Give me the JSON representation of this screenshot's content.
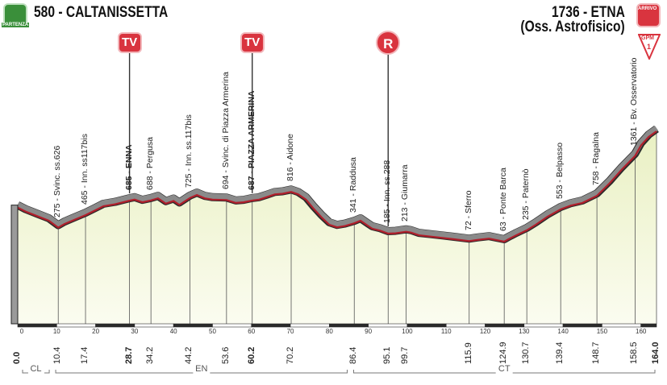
{
  "start": {
    "label": "580 - CALTANISSETTA",
    "badge_text": "PARTENZA"
  },
  "finish": {
    "line1": "1736 - ETNA",
    "line2": "(Oss. Astrofisico)",
    "badge_text": "ARRIVO",
    "gpm_text": "GPM",
    "gpm_cat": "1"
  },
  "markers": [
    {
      "type": "TV",
      "km": 28.7
    },
    {
      "type": "TV",
      "km": 60.2
    },
    {
      "type": "R",
      "km": 95.1
    }
  ],
  "waypoints": [
    {
      "text": "275 - Svinc. ss.626",
      "km": 10.4,
      "bold": false
    },
    {
      "text": "465 - Inn. ss117bis",
      "km": 17.4,
      "bold": false
    },
    {
      "text": "685 - ENNA",
      "km": 28.7,
      "bold": true
    },
    {
      "text": "688 - Pergusa",
      "km": 34.2,
      "bold": false
    },
    {
      "text": "725 - Inn. ss.117bis",
      "km": 44.2,
      "bold": false
    },
    {
      "text": "694 - Svinc. di Piazza Armerina",
      "km": 53.6,
      "bold": false
    },
    {
      "text": "687 - PIAZZA ARMERINA",
      "km": 60.2,
      "bold": true
    },
    {
      "text": "816 - Aidone",
      "km": 70.2,
      "bold": false
    },
    {
      "text": "341 - Raddusa",
      "km": 86.4,
      "bold": false
    },
    {
      "text": "185 - Inn. ss.288",
      "km": 95.1,
      "bold": false
    },
    {
      "text": "213 - Giumarra",
      "km": 99.7,
      "bold": false
    },
    {
      "text": "72 - Sferro",
      "km": 115.9,
      "bold": false
    },
    {
      "text": "63 - Ponte Barca",
      "km": 124.9,
      "bold": false
    },
    {
      "text": "235 - Paternò",
      "km": 130.7,
      "bold": false
    },
    {
      "text": "553 - Belpasso",
      "km": 139.4,
      "bold": false
    },
    {
      "text": "758 - Ragalna",
      "km": 148.7,
      "bold": false
    },
    {
      "text": "1361 - Bv. Osservatorio",
      "km": 158.5,
      "bold": false
    }
  ],
  "km_labels": [
    {
      "text": "0.0",
      "km": 0,
      "bold": true
    },
    {
      "text": "10.4",
      "km": 10.4,
      "bold": false
    },
    {
      "text": "17.4",
      "km": 17.4,
      "bold": false
    },
    {
      "text": "28.7",
      "km": 28.7,
      "bold": true
    },
    {
      "text": "34.2",
      "km": 34.2,
      "bold": false
    },
    {
      "text": "44.2",
      "km": 44.2,
      "bold": false
    },
    {
      "text": "53.6",
      "km": 53.6,
      "bold": false
    },
    {
      "text": "60.2",
      "km": 60.2,
      "bold": true
    },
    {
      "text": "70.2",
      "km": 70.2,
      "bold": false
    },
    {
      "text": "86.4",
      "km": 86.4,
      "bold": false
    },
    {
      "text": "95.1",
      "km": 95.1,
      "bold": false
    },
    {
      "text": "99.7",
      "km": 99.7,
      "bold": false
    },
    {
      "text": "115.9",
      "km": 115.9,
      "bold": false
    },
    {
      "text": "124.9",
      "km": 124.9,
      "bold": false
    },
    {
      "text": "130.7",
      "km": 130.7,
      "bold": false
    },
    {
      "text": "139.4",
      "km": 139.4,
      "bold": false
    },
    {
      "text": "148.7",
      "km": 148.7,
      "bold": false
    },
    {
      "text": "158.5",
      "km": 158.5,
      "bold": false
    },
    {
      "text": "164.0",
      "km": 164.0,
      "bold": true
    }
  ],
  "km_ticks": [
    "0",
    "10",
    "20",
    "30",
    "40",
    "50",
    "60",
    "70",
    "80",
    "90",
    "100",
    "110",
    "120",
    "130",
    "140",
    "150",
    "160"
  ],
  "regions": [
    {
      "name": "CL",
      "from_km": 0,
      "to_km": 8.5
    },
    {
      "name": "EN",
      "from_km": 8.5,
      "to_km": 85
    },
    {
      "name": "CT",
      "from_km": 85,
      "to_km": 164
    }
  ],
  "chart_data": {
    "type": "area",
    "xlabel": "",
    "ylabel": "",
    "x_unit": "km",
    "y_unit": "m",
    "xlim": [
      0,
      164
    ],
    "ylim": [
      0,
      1800
    ],
    "series": [
      {
        "x": [
          0,
          2,
          5,
          8,
          10.4,
          12,
          14,
          17.4,
          20,
          22,
          25,
          28.7,
          30,
          32,
          34.2,
          36,
          38,
          40,
          41.5,
          44.2,
          46,
          48,
          50,
          53.6,
          56,
          58,
          60.2,
          62,
          64,
          66,
          68,
          70.2,
          72,
          74,
          76,
          78,
          80,
          82,
          84,
          86.4,
          88,
          90,
          91,
          93,
          95.1,
          97,
          99.7,
          101,
          103,
          106,
          109,
          112,
          115.9,
          118,
          121,
          124.9,
          126,
          128,
          130.7,
          133,
          136,
          139.4,
          142,
          145,
          148.7,
          152,
          155,
          158.5,
          160,
          162,
          164
        ],
        "y": [
          580,
          520,
          450,
          380,
          275,
          330,
          380,
          465,
          540,
          600,
          630,
          685,
          700,
          660,
          688,
          720,
          640,
          680,
          620,
          725,
          770,
          720,
          700,
          694,
          650,
          660,
          687,
          700,
          740,
          780,
          790,
          816,
          780,
          700,
          560,
          430,
          320,
          280,
          300,
          341,
          380,
          300,
          260,
          230,
          185,
          190,
          213,
          200,
          160,
          140,
          120,
          100,
          72,
          90,
          110,
          63,
          100,
          160,
          235,
          320,
          440,
          553,
          610,
          650,
          758,
          950,
          1150,
          1361,
          1520,
          1650,
          1736
        ]
      }
    ]
  },
  "colors": {
    "profile_fill_top": "#eef3d0",
    "profile_fill_bottom": "#fbfcf0",
    "road_gray": "#8a8a8a",
    "road_line": "#b11f2b",
    "accent_red": "#d9343f",
    "start_green": "#3a8f3a",
    "baseline_dark": "#2a2a2a"
  }
}
